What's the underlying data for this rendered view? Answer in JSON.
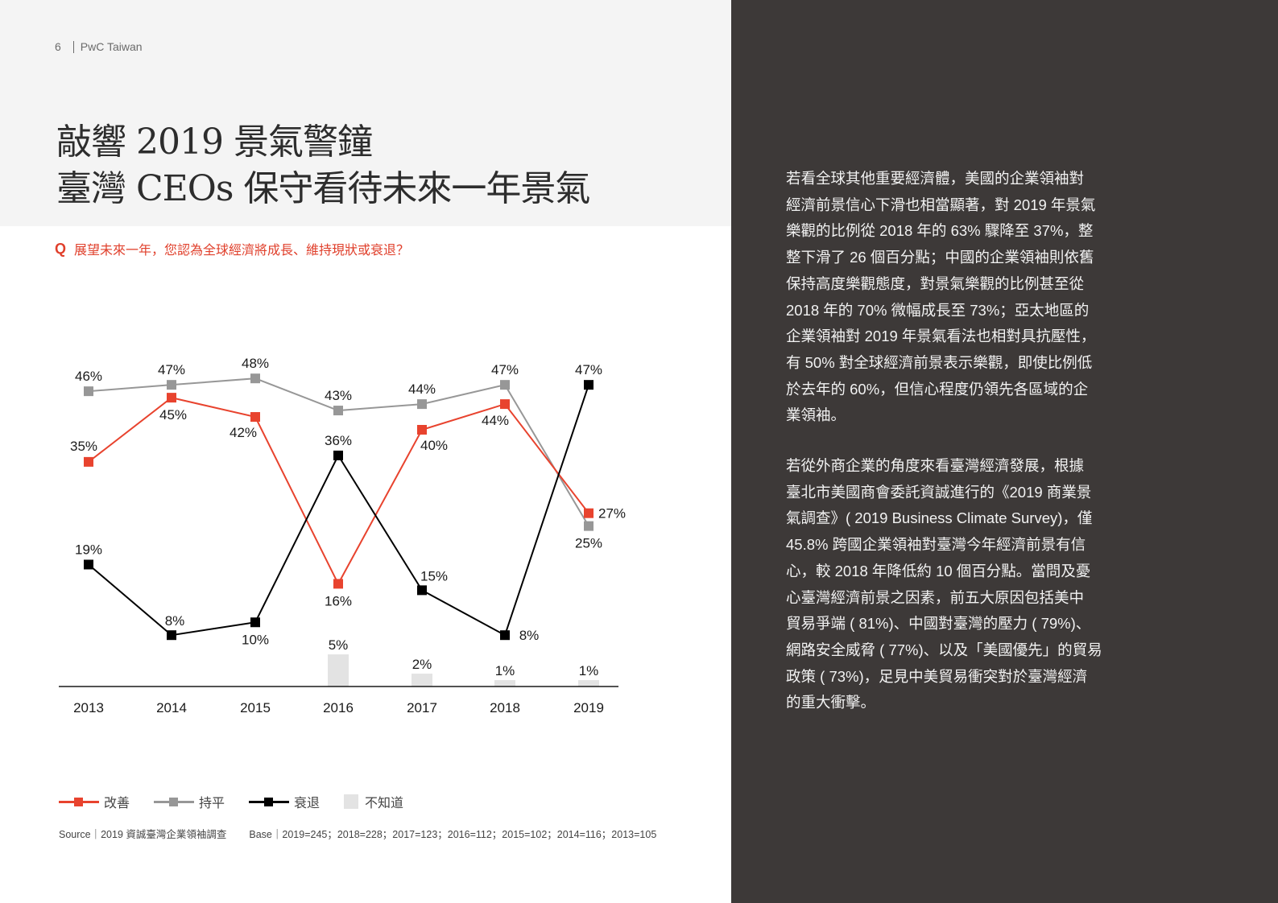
{
  "header": {
    "page_number": "6",
    "publisher": "PwC Taiwan"
  },
  "title": {
    "line1": "敲響 2019 景氣警鐘",
    "line2": "臺灣 CEOs 保守看待未來一年景氣"
  },
  "question": {
    "marker": "Q",
    "text": "展望未來一年，您認為全球經濟將成長、維持現狀或衰退？"
  },
  "chart_data": {
    "type": "line",
    "title": "展望未來一年，您認為全球經濟將成長、維持現狀或衰退？",
    "xlabel": "",
    "ylabel": "",
    "categories": [
      "2013",
      "2014",
      "2015",
      "2016",
      "2017",
      "2018",
      "2019"
    ],
    "series": [
      {
        "name": "改善",
        "type": "line",
        "color": "#e8432e",
        "values": [
          35,
          45,
          42,
          16,
          40,
          44,
          27
        ]
      },
      {
        "name": "持平",
        "type": "line",
        "color": "#979797",
        "values": [
          46,
          47,
          48,
          43,
          44,
          47,
          25
        ]
      },
      {
        "name": "衰退",
        "type": "line",
        "color": "#000000",
        "values": [
          19,
          8,
          10,
          36,
          15,
          8,
          47
        ]
      },
      {
        "name": "不知道",
        "type": "bar",
        "color": "#e3e3e3",
        "values": [
          0,
          0,
          0,
          5,
          2,
          1,
          1
        ]
      }
    ],
    "value_labels": {
      "改善": [
        "35%",
        "45%",
        "42%",
        "16%",
        "40%",
        "44%",
        "27%"
      ],
      "持平": [
        "46%",
        "47%",
        "48%",
        "43%",
        "44%",
        "47%",
        "25%"
      ],
      "衰退": [
        "19%",
        "8%",
        "10%",
        "36%",
        "15%",
        "8%",
        "47%"
      ],
      "不知道": [
        "",
        "",
        "",
        "5%",
        "2%",
        "1%",
        "1%"
      ]
    },
    "ylim": [
      0,
      50
    ],
    "grid": false,
    "legend_position": "bottom"
  },
  "legend": {
    "items": [
      {
        "label": "改善",
        "color": "#e8432e"
      },
      {
        "label": "持平",
        "color": "#979797"
      },
      {
        "label": "衰退",
        "color": "#000000"
      },
      {
        "label": "不知道",
        "color": "#e3e3e3"
      }
    ]
  },
  "source": {
    "source_label": "Source｜2019 資誠臺灣企業領袖調查",
    "base_label": "Base｜2019=245；2018=228；2017=123；2016=112；2015=102；2014=116；2013=105"
  },
  "body": {
    "paragraph1": [
      "若看全球其他重要經濟體，美國的企業領袖對",
      "經濟前景信心下滑也相當顯著，對 2019 年景氣",
      "樂觀的比例從 2018 年的 63% 驟降至 37%，整",
      "整下滑了 26 個百分點；中國的企業領袖則依舊",
      "保持高度樂觀態度，對景氣樂觀的比例甚至從",
      "2018 年的 70% 微幅成長至 73%；亞太地區的",
      "企業領袖對 2019 年景氣看法也相對具抗壓性，",
      "有 50% 對全球經濟前景表示樂觀，即使比例低",
      "於去年的 60%，但信心程度仍領先各區域的企",
      "業領袖。"
    ],
    "paragraph2": [
      "若從外商企業的角度來看臺灣經濟發展，根據",
      "臺北市美國商會委託資誠進行的《2019 商業景",
      "氣調查》( 2019 Business Climate Survey)，僅",
      "45.8% 跨國企業領袖對臺灣今年經濟前景有信",
      "心，較 2018 年降低約 10 個百分點。當問及憂",
      "心臺灣經濟前景之因素，前五大原因包括美中",
      "貿易爭端 ( 81%)、中國對臺灣的壓力 ( 79%)、",
      "網路安全威脅 ( 77%)、以及「美國優先」的貿易",
      "政策 ( 73%)，足見中美貿易衝突對於臺灣經濟",
      "的重大衝擊。"
    ]
  }
}
